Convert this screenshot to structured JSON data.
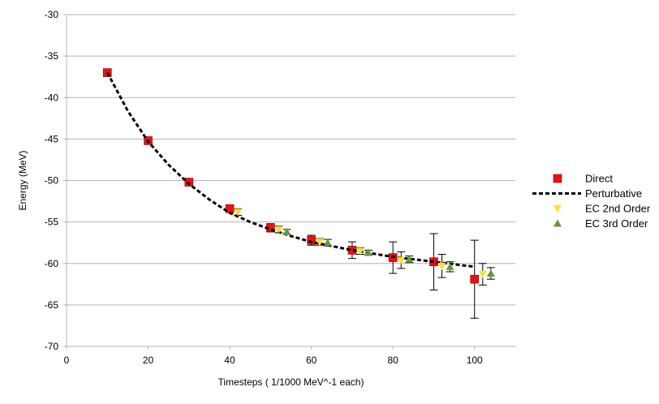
{
  "chart_data": {
    "type": "scatter",
    "title": "",
    "xlabel": "Timesteps ( 1/1000 MeV^-1 each)",
    "ylabel": "Energy (MeV)",
    "xlim": [
      0,
      110
    ],
    "ylim": [
      -70,
      -30
    ],
    "xticks": [
      0,
      20,
      40,
      60,
      80,
      100
    ],
    "yticks": [
      -30,
      -35,
      -40,
      -45,
      -50,
      -55,
      -60,
      -65,
      -70
    ],
    "grid": "horizontal",
    "legend_position": "right",
    "series": [
      {
        "name": "Direct",
        "marker": "square",
        "color": "#ee1111",
        "points": [
          {
            "x": 10,
            "y": -37.0,
            "err": 0.3
          },
          {
            "x": 20,
            "y": -45.2,
            "err": 0.3
          },
          {
            "x": 30,
            "y": -50.2,
            "err": 0.3
          },
          {
            "x": 40,
            "y": -53.4,
            "err": 0.4
          },
          {
            "x": 50,
            "y": -55.7,
            "err": 0.5
          },
          {
            "x": 60,
            "y": -57.2,
            "err": 0.6
          },
          {
            "x": 70,
            "y": -58.4,
            "err": 1.0
          },
          {
            "x": 80,
            "y": -59.3,
            "err": 1.9
          },
          {
            "x": 90,
            "y": -59.8,
            "err": 3.4
          },
          {
            "x": 100,
            "y": -61.9,
            "err": 4.7
          }
        ]
      },
      {
        "name": "Perturbative",
        "marker": "dashed-line",
        "color": "#000000",
        "points": [
          {
            "x": 10,
            "y": -37.0
          },
          {
            "x": 15,
            "y": -41.6
          },
          {
            "x": 20,
            "y": -45.3
          },
          {
            "x": 25,
            "y": -48.1
          },
          {
            "x": 30,
            "y": -50.4
          },
          {
            "x": 35,
            "y": -52.3
          },
          {
            "x": 40,
            "y": -53.9
          },
          {
            "x": 45,
            "y": -55.0
          },
          {
            "x": 50,
            "y": -55.9
          },
          {
            "x": 55,
            "y": -56.7
          },
          {
            "x": 60,
            "y": -57.4
          },
          {
            "x": 65,
            "y": -57.9
          },
          {
            "x": 70,
            "y": -58.4
          },
          {
            "x": 75,
            "y": -58.8
          },
          {
            "x": 80,
            "y": -59.2
          },
          {
            "x": 85,
            "y": -59.5
          },
          {
            "x": 90,
            "y": -59.8
          },
          {
            "x": 95,
            "y": -60.1
          },
          {
            "x": 100,
            "y": -60.4
          }
        ]
      },
      {
        "name": "EC 2nd Order",
        "marker": "triangle-down",
        "color": "#ffdd33",
        "points": [
          {
            "x": 42,
            "y": -53.8,
            "err": 0.4
          },
          {
            "x": 52,
            "y": -55.9,
            "err": 0.4
          },
          {
            "x": 62,
            "y": -57.4,
            "err": 0.4
          },
          {
            "x": 72,
            "y": -58.5,
            "err": 0.4
          },
          {
            "x": 82,
            "y": -59.6,
            "err": 1.0
          },
          {
            "x": 92,
            "y": -60.3,
            "err": 1.4
          },
          {
            "x": 102,
            "y": -61.3,
            "err": 1.3
          }
        ]
      },
      {
        "name": "EC 3rd Order",
        "marker": "triangle-up",
        "color": "#669933",
        "points": [
          {
            "x": 54,
            "y": -56.2,
            "err": 0.3
          },
          {
            "x": 64,
            "y": -57.5,
            "err": 0.4
          },
          {
            "x": 74,
            "y": -58.7,
            "err": 0.3
          },
          {
            "x": 84,
            "y": -59.5,
            "err": 0.4
          },
          {
            "x": 94,
            "y": -60.4,
            "err": 0.6
          },
          {
            "x": 104,
            "y": -61.2,
            "err": 0.7
          }
        ]
      }
    ]
  }
}
